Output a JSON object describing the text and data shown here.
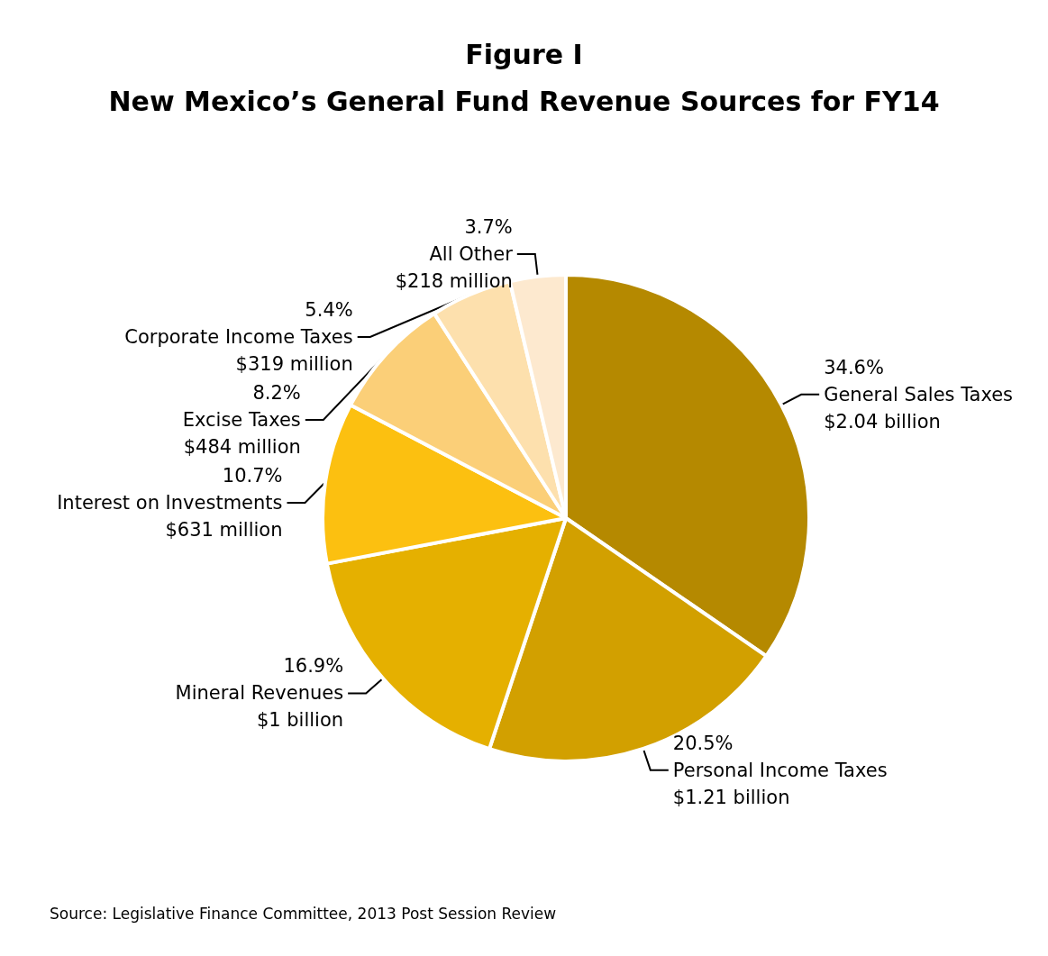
{
  "chart_data": {
    "type": "pie",
    "title": "Figure I",
    "subtitle": "New Mexico’s General Fund Revenue Sources for FY14",
    "categories": [
      "General Sales Taxes",
      "Personal Income Taxes",
      "Mineral Revenues",
      "Interest on Investments",
      "Excise Taxes",
      "Corporate Income Taxes",
      "All Other"
    ],
    "values": [
      34.6,
      20.5,
      16.9,
      10.7,
      8.2,
      5.4,
      3.7
    ],
    "value_labels": [
      "34.6%\n$2.04 billion",
      "20.5%\n$1.21 billion",
      "16.9%\n$1 billion",
      "10.7%\n$631 million",
      "8.2%\n$484 million",
      "5.4%\n$319 million",
      "3.7%\n$218 million"
    ],
    "colors": [
      "#b58900",
      "#d2a000",
      "#e5b000",
      "#fcc010",
      "#fbcf78",
      "#fde0ad",
      "#fde9cf"
    ],
    "legend": false,
    "annotations": [
      "Source: Legislative Finance Committee, 2013 Post Session Review"
    ]
  }
}
